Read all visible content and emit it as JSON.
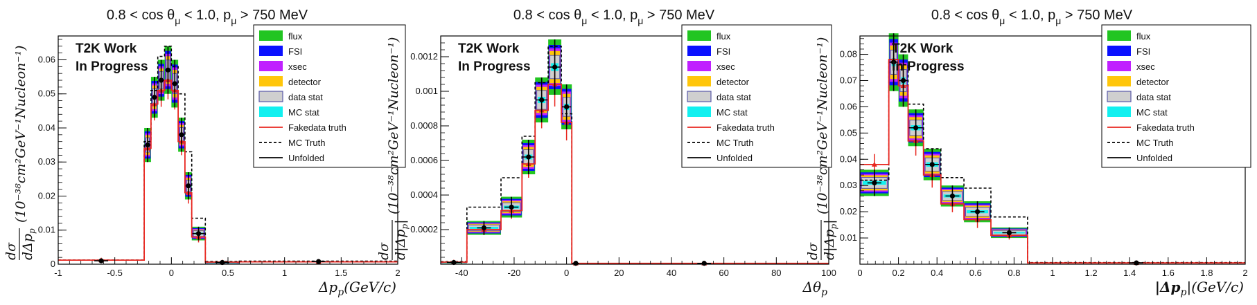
{
  "colors": {
    "flux": "#22c522",
    "FSI": "#0a10ff",
    "xsec": "#c020ff",
    "detector": "#ffc60a",
    "data_stat": "#cfcfcf",
    "data_stat_border": "#5a5aa8",
    "MC_stat": "#12f0f0",
    "fakedata": "#e8261f",
    "mctruth": "#000000",
    "unfolded": "#000000"
  },
  "legend": {
    "flux": "flux",
    "FSI": "FSI",
    "xsec": "xsec",
    "detector": "detector",
    "data_stat": "data stat",
    "MC_stat": "MC stat",
    "fakedata": "Fakedata truth",
    "mctruth": "MC Truth",
    "unfolded": "Unfolded"
  },
  "chart_data": [
    {
      "type": "step-histogram",
      "title": "0.8 < cos θμ < 1.0, pμ > 750 MeV",
      "watermark": [
        "T2K Work",
        "In Progress"
      ],
      "xlabel": "Δp_p (GeV/c)",
      "xlabel_main": "Δp",
      "xlabel_sub": "p",
      "xlabel_unit": "(GeV/c)",
      "ylabel_num": "dσ",
      "ylabel_den": "dΔp",
      "ylabel_den_sub": "p",
      "ylabel_unit": "(10⁻³⁸cm²GeV⁻¹Nucleon⁻¹)",
      "xlim": [
        -1,
        2
      ],
      "ylim": [
        0,
        0.067
      ],
      "xticks": [
        -1,
        -0.5,
        0,
        0.5,
        1,
        1.5,
        2
      ],
      "xtick_labels": [
        "-1",
        "-0.5",
        "0",
        "0.5",
        "1",
        "1.5",
        "2"
      ],
      "yticks": [
        0,
        0.01,
        0.02,
        0.03,
        0.04,
        0.05,
        0.06
      ],
      "ytick_labels": [
        "0",
        "0.01",
        "0.02",
        "0.03",
        "0.04",
        "0.05",
        "0.06"
      ],
      "edges": [
        -1,
        -0.24,
        -0.18,
        -0.12,
        -0.06,
        0,
        0.06,
        0.12,
        0.18,
        0.3,
        0.6,
        2
      ],
      "unfolded": [
        0.001,
        0.035,
        0.049,
        0.054,
        0.057,
        0.053,
        0.038,
        0.023,
        0.009,
        0.0005,
        0.0008
      ],
      "fakedata": [
        0.0012,
        0.034,
        0.047,
        0.051,
        0.054,
        0.051,
        0.036,
        0.021,
        0.008,
        0.0006,
        0.0007
      ],
      "mctruth": [
        0.0012,
        0.036,
        0.051,
        0.061,
        0.064,
        0.058,
        0.05,
        0.033,
        0.0135,
        0.0008,
        0.0009
      ],
      "errors": [
        0.0005,
        0.005,
        0.006,
        0.006,
        0.007,
        0.007,
        0.005,
        0.004,
        0.002,
        0.0003,
        0.0004
      ]
    },
    {
      "type": "step-histogram",
      "title": "0.8 < cos θμ < 1.0, pμ > 750 MeV",
      "watermark": [
        "T2K Work",
        "In Progress"
      ],
      "xlabel": "Δθ_p",
      "xlabel_main": "Δθ",
      "xlabel_sub": "p",
      "xlabel_unit": "",
      "ylabel_num": "dσ",
      "ylabel_den": "d|Δp",
      "ylabel_den_sub": "p",
      "ylabel_den_close": "|",
      "ylabel_unit": "(10⁻³⁸cm²GeV⁻¹Nucleon⁻¹)",
      "xlim": [
        -48,
        100
      ],
      "ylim": [
        0,
        0.00132
      ],
      "xticks": [
        -40,
        -20,
        0,
        20,
        40,
        60,
        80,
        100
      ],
      "xtick_labels": [
        "-40",
        "-20",
        "0",
        "20",
        "40",
        "60",
        "80",
        "100"
      ],
      "yticks": [
        0.0002,
        0.0004,
        0.0006,
        0.0008,
        0.001,
        0.0012
      ],
      "ytick_labels": [
        "0.0002",
        "0.0004",
        "0.0006",
        "0.0008",
        "0.001",
        "0.0012"
      ],
      "edges": [
        -48,
        -38,
        -25,
        -17,
        -12,
        -7,
        -2,
        2,
        5,
        100
      ],
      "unfolded": [
        1e-05,
        0.00021,
        0.00033,
        0.00062,
        0.00095,
        0.00114,
        0.00091,
        5e-06,
        5e-06
      ],
      "fakedata": [
        1.2e-05,
        0.0002,
        0.00031,
        0.00058,
        0.00089,
        0.00104,
        0.00082,
        5e-06,
        5e-06
      ],
      "mctruth": [
        1.5e-05,
        0.00033,
        0.0005,
        0.00074,
        0.00105,
        0.00126,
        0.00087,
        5e-06,
        5e-06
      ],
      "errors": [
        5e-06,
        4e-05,
        6e-05,
        0.0001,
        0.00013,
        0.00016,
        0.00013,
        2e-06,
        2e-06
      ]
    },
    {
      "type": "step-histogram",
      "title": "0.8 < cos θμ < 1.0, pμ > 750 MeV",
      "watermark": [
        "T2K Work",
        "In Progress"
      ],
      "xlabel": "|Δp_p| (GeV/c)",
      "xlabel_main": "|Δp",
      "xlabel_sub": "p",
      "xlabel_close": "|",
      "xlabel_unit": "(GeV/c)",
      "ylabel_num": "dσ",
      "ylabel_den": "d|Δp",
      "ylabel_den_sub": "p",
      "ylabel_den_close": "|",
      "ylabel_unit": "(10⁻³⁸cm²GeV⁻¹Nucleon⁻¹)",
      "xlim": [
        0,
        2
      ],
      "ylim": [
        0,
        0.087
      ],
      "xticks": [
        0,
        0.2,
        0.4,
        0.6,
        0.8,
        1,
        1.2,
        1.4,
        1.6,
        1.8,
        2
      ],
      "xtick_labels": [
        "0",
        "0.2",
        "0.4",
        "0.6",
        "0.8",
        "1",
        "1.2",
        "1.4",
        "1.6",
        "1.8",
        "2"
      ],
      "yticks": [
        0.01,
        0.02,
        0.03,
        0.04,
        0.05,
        0.06,
        0.07,
        0.08
      ],
      "ytick_labels": [
        "0.01",
        "0.02",
        "0.03",
        "0.04",
        "0.05",
        "0.06",
        "0.07",
        "0.08"
      ],
      "edges": [
        0,
        0.15,
        0.2,
        0.25,
        0.33,
        0.42,
        0.54,
        0.68,
        0.87,
        2
      ],
      "unfolded": [
        0.031,
        0.077,
        0.07,
        0.052,
        0.038,
        0.026,
        0.02,
        0.012,
        0.0005
      ],
      "fakedata": [
        0.038,
        0.078,
        0.068,
        0.047,
        0.034,
        0.023,
        0.017,
        0.011,
        0.0005
      ],
      "mctruth": [
        0.032,
        0.078,
        0.076,
        0.061,
        0.044,
        0.033,
        0.029,
        0.018,
        0.0006
      ],
      "errors": [
        0.005,
        0.011,
        0.01,
        0.007,
        0.006,
        0.004,
        0.004,
        0.002,
        0.0002
      ]
    }
  ]
}
